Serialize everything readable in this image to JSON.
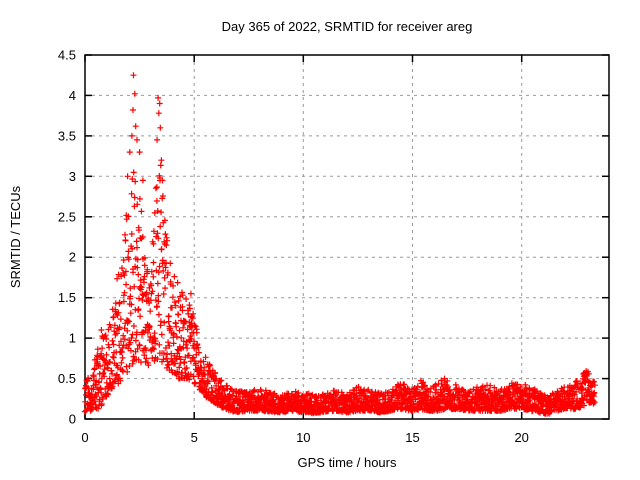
{
  "chart_data": {
    "type": "scatter",
    "title": "Day 365 of 2022, SRMTID for receiver areg",
    "xlabel": "GPS time / hours",
    "ylabel": "SRMTID / TECUs",
    "xlim": [
      0,
      24
    ],
    "ylim": [
      0,
      4.5
    ],
    "xticks": [
      0,
      5,
      10,
      15,
      20
    ],
    "xtick_labels": [
      "0",
      "5",
      "10",
      "15",
      "20"
    ],
    "yticks": [
      0,
      0.5,
      1,
      1.5,
      2,
      2.5,
      3,
      3.5,
      4,
      4.5
    ],
    "ytick_labels": [
      "0",
      "0.5",
      "1",
      "1.5",
      "2",
      "2.5",
      "3",
      "3.5",
      "4",
      "4.5"
    ],
    "grid": "dashed gray lines at every major tick, ticks mirrored on all four borders",
    "legend": "none",
    "marker": "plus",
    "marker_color": "#ff0000",
    "axis_color": "#000000",
    "grid_color": "#9a9a9a",
    "background_color": "#ffffff",
    "x_extent": [
      0,
      23.35
    ],
    "n_points": 2600,
    "series_summary": "Dense red '+' scatter of SRMTID vs GPS time. Values start ~0.1-0.5 TECU at 0 h, rise steeply after 1 h to a broad peak between 1.5 and 4.5 h (bulk 0.7-3.1 TECU, extreme outliers 4.0-4.25 TECU near 2.2 h and 3.9-4.0 TECU near 3.4 h, slight dip near 3.0 h), decline to ~0.5 TECU by 6 h, then form a dense low band ~0.1-0.35 TECU from 7 h to 23 h with small bumps to ~0.45-0.5 near 14.5, 15.4 and 16.5 h, a shallow dip near 21 h, and a final rise to ~0.6 TECU near 23 h; data end ~23.4 h.",
    "envelope": [
      [
        0.0,
        0.08,
        0.5
      ],
      [
        0.3,
        0.1,
        0.55
      ],
      [
        0.6,
        0.12,
        0.9
      ],
      [
        0.8,
        0.18,
        1.05
      ],
      [
        1.0,
        0.28,
        1.05
      ],
      [
        1.3,
        0.4,
        1.4
      ],
      [
        1.6,
        0.45,
        2.0
      ],
      [
        1.9,
        0.55,
        2.7
      ],
      [
        2.1,
        0.65,
        3.1
      ],
      [
        2.25,
        0.7,
        3.3
      ],
      [
        2.4,
        0.7,
        3.05
      ],
      [
        2.6,
        0.7,
        2.7
      ],
      [
        2.8,
        0.68,
        2.4
      ],
      [
        3.0,
        0.65,
        2.15
      ],
      [
        3.2,
        0.72,
        2.9
      ],
      [
        3.4,
        0.75,
        3.4
      ],
      [
        3.6,
        0.68,
        2.7
      ],
      [
        3.8,
        0.6,
        2.1
      ],
      [
        4.0,
        0.55,
        1.9
      ],
      [
        4.3,
        0.5,
        1.7
      ],
      [
        4.6,
        0.5,
        1.55
      ],
      [
        5.0,
        0.45,
        1.35
      ],
      [
        5.4,
        0.3,
        0.85
      ],
      [
        5.8,
        0.22,
        0.62
      ],
      [
        6.2,
        0.15,
        0.5
      ],
      [
        6.6,
        0.1,
        0.4
      ],
      [
        7.0,
        0.08,
        0.35
      ],
      [
        7.5,
        0.1,
        0.36
      ],
      [
        8.0,
        0.1,
        0.38
      ],
      [
        8.5,
        0.09,
        0.33
      ],
      [
        9.0,
        0.08,
        0.3
      ],
      [
        9.5,
        0.1,
        0.36
      ],
      [
        10.0,
        0.08,
        0.3
      ],
      [
        10.5,
        0.07,
        0.33
      ],
      [
        11.0,
        0.09,
        0.32
      ],
      [
        11.5,
        0.1,
        0.36
      ],
      [
        12.0,
        0.08,
        0.31
      ],
      [
        12.5,
        0.1,
        0.4
      ],
      [
        13.0,
        0.1,
        0.36
      ],
      [
        13.5,
        0.08,
        0.32
      ],
      [
        14.0,
        0.1,
        0.36
      ],
      [
        14.5,
        0.12,
        0.46
      ],
      [
        15.0,
        0.1,
        0.36
      ],
      [
        15.4,
        0.12,
        0.48
      ],
      [
        15.8,
        0.1,
        0.38
      ],
      [
        16.2,
        0.1,
        0.45
      ],
      [
        16.5,
        0.12,
        0.52
      ],
      [
        17.0,
        0.12,
        0.42
      ],
      [
        17.5,
        0.1,
        0.36
      ],
      [
        18.0,
        0.1,
        0.4
      ],
      [
        18.5,
        0.1,
        0.42
      ],
      [
        19.0,
        0.1,
        0.36
      ],
      [
        19.5,
        0.12,
        0.44
      ],
      [
        20.0,
        0.12,
        0.45
      ],
      [
        20.4,
        0.1,
        0.4
      ],
      [
        20.8,
        0.08,
        0.34
      ],
      [
        21.2,
        0.06,
        0.28
      ],
      [
        21.6,
        0.1,
        0.36
      ],
      [
        22.0,
        0.12,
        0.4
      ],
      [
        22.4,
        0.12,
        0.44
      ],
      [
        22.8,
        0.15,
        0.55
      ],
      [
        23.0,
        0.2,
        0.62
      ],
      [
        23.2,
        0.2,
        0.5
      ],
      [
        23.35,
        0.18,
        0.45
      ]
    ],
    "peak_points": [
      [
        2.22,
        4.25
      ],
      [
        2.28,
        4.02
      ],
      [
        2.2,
        3.82
      ],
      [
        2.32,
        3.62
      ],
      [
        2.15,
        3.5
      ],
      [
        2.38,
        3.45
      ],
      [
        3.35,
        3.97
      ],
      [
        3.42,
        3.9
      ],
      [
        3.38,
        3.78
      ],
      [
        3.45,
        3.6
      ],
      [
        3.3,
        3.45
      ],
      [
        3.5,
        3.2
      ],
      [
        2.5,
        3.3
      ],
      [
        2.05,
        3.3
      ],
      [
        1.95,
        3.0
      ],
      [
        2.65,
        2.95
      ],
      [
        3.55,
        2.95
      ],
      [
        0.75,
        1.1
      ],
      [
        4.85,
        1.55
      ]
    ],
    "generator": {
      "seed": 1365,
      "skew": 1.5
    }
  }
}
